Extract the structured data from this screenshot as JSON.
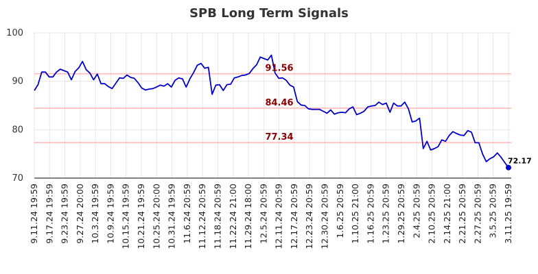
{
  "chart_data": {
    "type": "line",
    "title": "SPB Long Term Signals",
    "xlabel": "",
    "ylabel": "",
    "ylim": [
      70,
      100
    ],
    "yticks": [
      70,
      80,
      90,
      100
    ],
    "grid": true,
    "x_tick_labels": [
      "9.11.24 19:59",
      "9.17.24 19:59",
      "9.23.24 19:59",
      "9.27.24 20:00",
      "10.3.24 19:59",
      "10.9.24 19:59",
      "10.15.24 19:59",
      "10.21.24 19:59",
      "10.25.24 20:00",
      "10.31.24 19:59",
      "11.6.24 20:59",
      "11.12.24 20:59",
      "11.18.24 20:59",
      "11.22.24 21:00",
      "11.29.24 18:00",
      "12.5.24 20:59",
      "12.11.24 20:59",
      "12.17.24 20:59",
      "12.23.24 20:59",
      "12.30.24 20:59",
      "1.6.25 20:59",
      "1.10.25 21:00",
      "1.16.25 20:59",
      "1.23.25 20:59",
      "1.29.25 20:59",
      "2.4.25 20:59",
      "2.10.25 20:59",
      "2.14.25 21:00",
      "2.21.25 20:59",
      "2.27.25 20:59",
      "3.5.25 20:59",
      "3.11.25 19:59"
    ],
    "series": [
      {
        "color": "#0000cc",
        "values": [
          88.1,
          89.3,
          91.9,
          91.9,
          90.9,
          90.9,
          91.9,
          92.5,
          92.2,
          91.9,
          90.3,
          92.0,
          92.8,
          94.1,
          92.4,
          91.7,
          90.3,
          91.5,
          89.5,
          89.5,
          88.9,
          88.5,
          89.6,
          90.7,
          90.6,
          91.3,
          90.8,
          90.6,
          89.7,
          88.6,
          88.2,
          88.4,
          88.5,
          88.8,
          89.2,
          89.0,
          89.5,
          88.8,
          90.2,
          90.7,
          90.5,
          88.8,
          90.5,
          91.8,
          93.3,
          93.7,
          92.7,
          92.9,
          87.3,
          89.2,
          89.3,
          88.1,
          89.3,
          89.4,
          90.7,
          90.9,
          91.2,
          91.3,
          91.6,
          92.6,
          93.4,
          95.0,
          94.7,
          94.4,
          95.4,
          91.7,
          90.6,
          90.7,
          90.2,
          89.2,
          88.8,
          85.8,
          85.1,
          85.0,
          84.3,
          84.2,
          84.2,
          84.2,
          83.8,
          83.4,
          84.1,
          83.2,
          83.5,
          83.6,
          83.5,
          84.3,
          84.7,
          83.1,
          83.4,
          83.8,
          84.7,
          84.9,
          85.0,
          85.7,
          85.2,
          85.5,
          83.6,
          85.5,
          84.9,
          84.9,
          85.7,
          84.3,
          81.6,
          81.8,
          82.4,
          76.1,
          77.6,
          75.8,
          76.1,
          76.5,
          77.9,
          77.6,
          78.8,
          79.6,
          79.2,
          78.9,
          78.8,
          79.8,
          79.5,
          77.3,
          77.3,
          75.0,
          73.4,
          74.0,
          74.4,
          75.2,
          74.3,
          73.2,
          72.17
        ]
      }
    ],
    "signal_levels": [
      {
        "label": "91.56",
        "value": 91.56,
        "color": "#ffb3b3"
      },
      {
        "label": "84.46",
        "value": 84.46,
        "color": "#ffb3b3"
      },
      {
        "label": "77.34",
        "value": 77.34,
        "color": "#ffb3b3"
      }
    ],
    "last_point": {
      "label": "72.17",
      "value": 72.17,
      "marker_color": "#0000cc"
    }
  }
}
